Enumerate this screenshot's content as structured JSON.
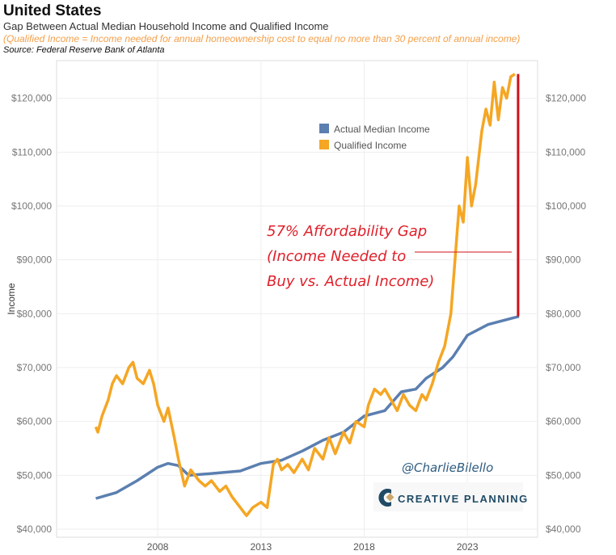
{
  "header": {
    "title": "United States",
    "subtitle": "Gap Between Actual Median Household Income and Qualified Income",
    "note": "(Qualified Income = Income needed for annual homeownership cost to equal no more than 30 percent of annual income)",
    "source": "Source: Federal Reserve Bank of Atlanta"
  },
  "chart_data": {
    "type": "line",
    "ylabel": "Income",
    "ylim": [
      38500,
      127000
    ],
    "xlim": [
      2003.1,
      2026.4
    ],
    "xticks": [
      2008,
      2013,
      2018,
      2023
    ],
    "yticks": [
      40000,
      50000,
      60000,
      70000,
      80000,
      90000,
      100000,
      110000,
      120000
    ],
    "ytick_labels": [
      "$40,000",
      "$50,000",
      "$60,000",
      "$70,000",
      "$80,000",
      "$90,000",
      "$100,000",
      "$110,000",
      "$120,000"
    ],
    "grid": true,
    "legend": "top-right",
    "series": [
      {
        "name": "Actual Median Income",
        "color": "#5b7fb0",
        "x": [
          2005,
          2006,
          2007,
          2007.6,
          2008,
          2008.5,
          2009,
          2009.5,
          2010.5,
          2012,
          2013,
          2014,
          2015,
          2016,
          2017,
          2018,
          2019,
          2019.8,
          2020.5,
          2021,
          2021.8,
          2022.3,
          2023,
          2024,
          2025.5
        ],
        "y": [
          45700,
          46800,
          49000,
          50500,
          51500,
          52200,
          51800,
          50000,
          50300,
          50800,
          52200,
          52800,
          54500,
          56500,
          58000,
          61000,
          62000,
          65500,
          66000,
          68000,
          70000,
          72000,
          76000,
          78000,
          79500
        ]
      },
      {
        "name": "Qualified Income",
        "color": "#f5a623",
        "x": [
          2005,
          2005.1,
          2005.3,
          2005.6,
          2005.8,
          2006,
          2006.3,
          2006.6,
          2006.8,
          2007,
          2007.3,
          2007.6,
          2007.8,
          2008,
          2008.3,
          2008.5,
          2008.8,
          2009,
          2009.3,
          2009.6,
          2010,
          2010.3,
          2010.6,
          2011,
          2011.3,
          2011.6,
          2012,
          2012.3,
          2012.6,
          2013,
          2013.3,
          2013.6,
          2013.8,
          2014,
          2014.3,
          2014.6,
          2015,
          2015.3,
          2015.6,
          2016,
          2016.3,
          2016.6,
          2017,
          2017.3,
          2017.6,
          2018,
          2018.2,
          2018.5,
          2018.8,
          2019,
          2019.3,
          2019.6,
          2019.9,
          2020.2,
          2020.5,
          2020.8,
          2021,
          2021.3,
          2021.6,
          2021.9,
          2022.2,
          2022.4,
          2022.6,
          2022.8,
          2023,
          2023.2,
          2023.4,
          2023.7,
          2023.9,
          2024.1,
          2024.3,
          2024.5,
          2024.7,
          2024.9,
          2025.1,
          2025.3
        ],
        "y": [
          59000,
          58000,
          61000,
          64000,
          67000,
          68500,
          67000,
          70000,
          71000,
          68000,
          67000,
          69500,
          67000,
          63000,
          60000,
          62500,
          57000,
          53000,
          48000,
          51000,
          49000,
          48000,
          49000,
          47000,
          48000,
          46000,
          44000,
          42500,
          44000,
          45000,
          44000,
          52000,
          53000,
          51000,
          52000,
          50500,
          53000,
          51000,
          55000,
          53000,
          57000,
          54000,
          58000,
          56000,
          60000,
          59000,
          63000,
          66000,
          65000,
          66000,
          64000,
          62000,
          65000,
          63000,
          62000,
          65000,
          64000,
          67000,
          71000,
          74000,
          80000,
          90000,
          100000,
          97000,
          109000,
          100000,
          104000,
          114000,
          118000,
          115000,
          123000,
          116000,
          122000,
          120000,
          124000,
          124500
        ]
      }
    ],
    "annotations": [
      "57% Affordability Gap",
      "(Income Needed to",
      "Buy vs. Actual Income)"
    ],
    "watermark": "@CharlieBilello",
    "logo": "CREATIVE PLANNING"
  }
}
